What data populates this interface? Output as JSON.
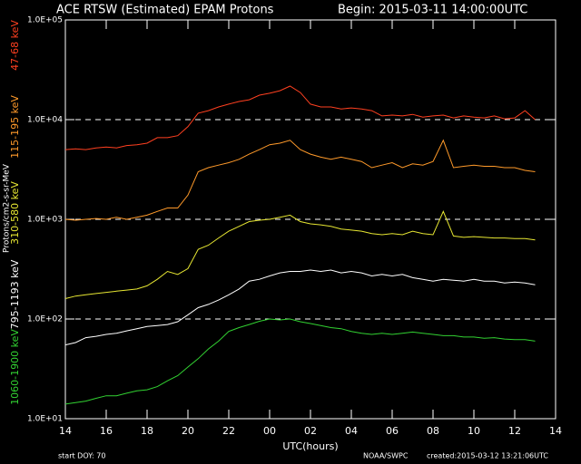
{
  "chart_data": {
    "type": "line",
    "title": "ACE RTSW (Estimated) EPAM Protons",
    "subtitle": "Begin: 2015-03-11 14:00:00UTC",
    "x_label": "UTC(hours)",
    "y_label": "Protons/cm2-s-sr-MeV",
    "footer_left": "start DOY:   70",
    "footer_center": "NOAA/SWPC",
    "footer_right": "created:2015-03-12 13:21:06UTC",
    "log_y": true,
    "grid": true,
    "xlim": [
      14,
      38
    ],
    "xticks": [
      14,
      16,
      18,
      20,
      22,
      {
        "value": 24,
        "label": "00"
      },
      {
        "value": 26,
        "label": "02"
      },
      {
        "value": 28,
        "label": "04"
      },
      {
        "value": 30,
        "label": "06"
      },
      {
        "value": 32,
        "label": "08"
      },
      {
        "value": 34,
        "label": "10"
      },
      {
        "value": 36,
        "label": "12"
      },
      {
        "value": 38,
        "label": "14"
      }
    ],
    "ylim": [
      10,
      100000
    ],
    "yticks": [
      {
        "value": 10,
        "label": "1.0E+01"
      },
      {
        "value": 100,
        "label": "1.0E+02"
      },
      {
        "value": 1000,
        "label": "1.0E+03"
      },
      {
        "value": 10000,
        "label": "1.0E+04"
      },
      {
        "value": 100000,
        "label": "1.0E+05"
      }
    ],
    "x": [
      14,
      14.5,
      15,
      15.5,
      16,
      16.5,
      17,
      17.5,
      18,
      18.5,
      19,
      19.5,
      20,
      20.5,
      21,
      21.5,
      22,
      22.5,
      23,
      23.5,
      24,
      24.5,
      25,
      25.5,
      26,
      26.5,
      27,
      27.5,
      28,
      28.5,
      29,
      29.5,
      30,
      30.5,
      31,
      31.5,
      32,
      32.5,
      33,
      33.5,
      34,
      34.5,
      35,
      35.5,
      36,
      36.5,
      37
    ],
    "series": [
      {
        "name": "47-68 keV",
        "color": "#ff4020",
        "values": [
          5000,
          5100,
          5000,
          5200,
          5300,
          5200,
          5500,
          5600,
          5800,
          6600,
          6600,
          6900,
          8500,
          11600,
          12300,
          13400,
          14300,
          15200,
          15800,
          17600,
          18400,
          19500,
          21700,
          18700,
          14300,
          13400,
          13400,
          12800,
          13100,
          12800,
          12300,
          10900,
          11100,
          10900,
          11300,
          10600,
          10900,
          11100,
          10400,
          10900,
          10600,
          10400,
          10900,
          10200,
          10400,
          12300,
          10000
        ]
      },
      {
        "name": "115-195 keV",
        "color": "#ff9a2a",
        "values": [
          1000,
          980,
          1000,
          1020,
          1000,
          1050,
          1000,
          1050,
          1100,
          1200,
          1300,
          1300,
          1750,
          3000,
          3300,
          3500,
          3700,
          4000,
          4500,
          5000,
          5600,
          5800,
          6200,
          5000,
          4500,
          4200,
          4000,
          4200,
          4000,
          3800,
          3300,
          3500,
          3700,
          3300,
          3600,
          3500,
          3800,
          6200,
          3300,
          3400,
          3500,
          3400,
          3400,
          3300,
          3300,
          3100,
          3000
        ]
      },
      {
        "name": "310-580 keV",
        "color": "#e6e632",
        "values": [
          160,
          170,
          175,
          180,
          185,
          190,
          195,
          200,
          215,
          250,
          300,
          280,
          320,
          500,
          550,
          650,
          760,
          850,
          950,
          980,
          1000,
          1050,
          1100,
          950,
          900,
          880,
          850,
          800,
          780,
          760,
          720,
          700,
          720,
          700,
          760,
          720,
          700,
          1200,
          680,
          660,
          670,
          660,
          650,
          650,
          640,
          640,
          620
        ]
      },
      {
        "name": "795-1193 keV",
        "color": "#ffffff",
        "values": [
          55,
          58,
          65,
          67,
          70,
          72,
          76,
          80,
          84,
          86,
          88,
          94,
          110,
          130,
          140,
          155,
          175,
          200,
          240,
          250,
          270,
          290,
          300,
          300,
          310,
          300,
          310,
          290,
          300,
          290,
          270,
          280,
          270,
          280,
          260,
          250,
          240,
          250,
          245,
          240,
          250,
          240,
          240,
          230,
          235,
          230,
          220
        ]
      },
      {
        "name": "1060-1900 keV",
        "color": "#32d232",
        "values": [
          14,
          14.5,
          15,
          16,
          17,
          17,
          18,
          19,
          19.5,
          21,
          24,
          27,
          33,
          40,
          50,
          60,
          75,
          82,
          88,
          95,
          100,
          98,
          100,
          94,
          90,
          86,
          82,
          80,
          75,
          72,
          70,
          72,
          70,
          72,
          74,
          72,
          70,
          68,
          68,
          66,
          66,
          64,
          65,
          63,
          62,
          62,
          60
        ]
      }
    ]
  }
}
